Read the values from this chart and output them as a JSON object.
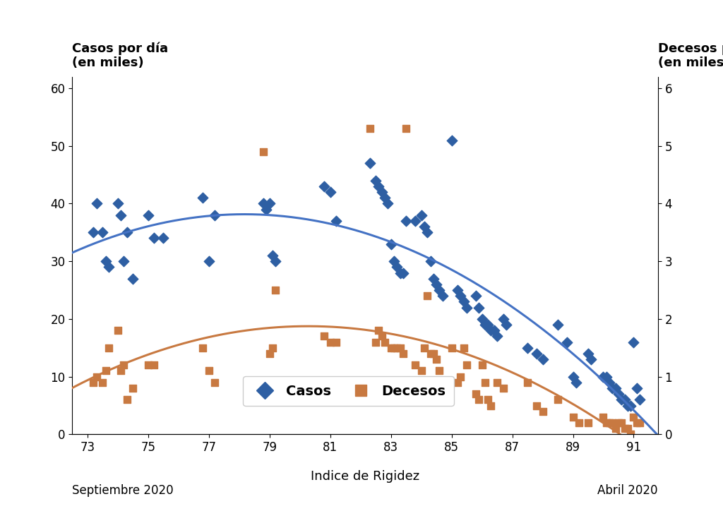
{
  "casos_scatter": [
    [
      73.2,
      35
    ],
    [
      73.3,
      40
    ],
    [
      73.5,
      35
    ],
    [
      73.6,
      30
    ],
    [
      73.7,
      29
    ],
    [
      74.0,
      40
    ],
    [
      74.1,
      38
    ],
    [
      74.2,
      30
    ],
    [
      74.3,
      35
    ],
    [
      74.5,
      27
    ],
    [
      75.0,
      38
    ],
    [
      75.2,
      34
    ],
    [
      75.5,
      34
    ],
    [
      76.8,
      41
    ],
    [
      77.0,
      30
    ],
    [
      77.2,
      38
    ],
    [
      78.8,
      40
    ],
    [
      78.9,
      39
    ],
    [
      79.0,
      40
    ],
    [
      79.1,
      31
    ],
    [
      79.2,
      30
    ],
    [
      80.8,
      43
    ],
    [
      81.0,
      42
    ],
    [
      81.2,
      37
    ],
    [
      82.3,
      47
    ],
    [
      82.5,
      44
    ],
    [
      82.6,
      43
    ],
    [
      82.7,
      42
    ],
    [
      82.8,
      41
    ],
    [
      82.9,
      40
    ],
    [
      83.0,
      33
    ],
    [
      83.1,
      30
    ],
    [
      83.2,
      29
    ],
    [
      83.3,
      28
    ],
    [
      83.4,
      28
    ],
    [
      83.5,
      37
    ],
    [
      83.8,
      37
    ],
    [
      84.0,
      38
    ],
    [
      84.1,
      36
    ],
    [
      84.2,
      35
    ],
    [
      84.3,
      30
    ],
    [
      84.4,
      27
    ],
    [
      84.5,
      26
    ],
    [
      84.6,
      25
    ],
    [
      84.7,
      24
    ],
    [
      85.0,
      51
    ],
    [
      85.2,
      25
    ],
    [
      85.3,
      24
    ],
    [
      85.4,
      23
    ],
    [
      85.5,
      22
    ],
    [
      85.8,
      24
    ],
    [
      85.9,
      22
    ],
    [
      86.0,
      20
    ],
    [
      86.1,
      19
    ],
    [
      86.2,
      19
    ],
    [
      86.3,
      18
    ],
    [
      86.4,
      18
    ],
    [
      86.5,
      17
    ],
    [
      86.7,
      20
    ],
    [
      86.8,
      19
    ],
    [
      87.5,
      15
    ],
    [
      87.8,
      14
    ],
    [
      88.0,
      13
    ],
    [
      88.5,
      19
    ],
    [
      88.8,
      16
    ],
    [
      89.0,
      10
    ],
    [
      89.1,
      9
    ],
    [
      89.5,
      14
    ],
    [
      89.6,
      13
    ],
    [
      90.0,
      10
    ],
    [
      90.1,
      10
    ],
    [
      90.2,
      9
    ],
    [
      90.3,
      8
    ],
    [
      90.4,
      8
    ],
    [
      90.5,
      7
    ],
    [
      90.6,
      6
    ],
    [
      90.7,
      6
    ],
    [
      90.8,
      5
    ],
    [
      90.9,
      5
    ],
    [
      91.0,
      16
    ],
    [
      91.1,
      8
    ],
    [
      91.2,
      6
    ]
  ],
  "decesos_scatter": [
    [
      73.2,
      9
    ],
    [
      73.3,
      10
    ],
    [
      73.5,
      9
    ],
    [
      73.6,
      11
    ],
    [
      73.7,
      15
    ],
    [
      74.0,
      18
    ],
    [
      74.1,
      11
    ],
    [
      74.2,
      12
    ],
    [
      74.3,
      6
    ],
    [
      74.5,
      8
    ],
    [
      75.0,
      12
    ],
    [
      75.2,
      12
    ],
    [
      76.8,
      15
    ],
    [
      77.0,
      11
    ],
    [
      77.2,
      9
    ],
    [
      78.8,
      49
    ],
    [
      79.0,
      14
    ],
    [
      79.1,
      15
    ],
    [
      79.2,
      25
    ],
    [
      80.8,
      17
    ],
    [
      81.0,
      16
    ],
    [
      81.2,
      16
    ],
    [
      82.3,
      53
    ],
    [
      82.5,
      16
    ],
    [
      82.6,
      18
    ],
    [
      82.7,
      17
    ],
    [
      82.8,
      16
    ],
    [
      83.0,
      15
    ],
    [
      83.1,
      15
    ],
    [
      83.2,
      15
    ],
    [
      83.3,
      15
    ],
    [
      83.4,
      14
    ],
    [
      83.5,
      53
    ],
    [
      83.8,
      12
    ],
    [
      84.0,
      11
    ],
    [
      84.1,
      15
    ],
    [
      84.2,
      24
    ],
    [
      84.3,
      14
    ],
    [
      84.4,
      14
    ],
    [
      84.5,
      13
    ],
    [
      84.6,
      11
    ],
    [
      85.0,
      15
    ],
    [
      85.2,
      9
    ],
    [
      85.3,
      10
    ],
    [
      85.4,
      15
    ],
    [
      85.5,
      12
    ],
    [
      85.8,
      7
    ],
    [
      85.9,
      6
    ],
    [
      86.0,
      12
    ],
    [
      86.1,
      9
    ],
    [
      86.2,
      6
    ],
    [
      86.3,
      5
    ],
    [
      86.5,
      9
    ],
    [
      86.7,
      8
    ],
    [
      87.5,
      9
    ],
    [
      87.8,
      5
    ],
    [
      88.0,
      4
    ],
    [
      88.5,
      6
    ],
    [
      89.0,
      3
    ],
    [
      89.2,
      2
    ],
    [
      89.5,
      2
    ],
    [
      90.0,
      3
    ],
    [
      90.1,
      2
    ],
    [
      90.2,
      2
    ],
    [
      90.3,
      2
    ],
    [
      90.4,
      1
    ],
    [
      90.5,
      2
    ],
    [
      90.6,
      2
    ],
    [
      90.7,
      1
    ],
    [
      90.8,
      1
    ],
    [
      90.9,
      0
    ],
    [
      91.0,
      3
    ],
    [
      91.1,
      2
    ],
    [
      91.2,
      2
    ]
  ],
  "casos_color": "#2E5FA3",
  "decesos_color": "#C87941",
  "curve_casos_color": "#4472C4",
  "curve_decesos_color": "#C87941",
  "casos_label": "Casos",
  "decesos_label": "Decesos",
  "xlabel": "Indice de Rigidez",
  "ylabel_left_line1": "Casos por día",
  "ylabel_left_line2": "(en miles)",
  "ylabel_right_line1": "Decesos por día",
  "ylabel_right_line2": "(en miles)",
  "x_label_left": "Septiembre 2020",
  "x_label_right": "Abril 2020",
  "xlim": [
    72.5,
    91.8
  ],
  "ylim_left": [
    0,
    62
  ],
  "ylim_right": [
    0,
    6.2
  ],
  "xticks": [
    73,
    75,
    77,
    79,
    81,
    83,
    85,
    87,
    89,
    91
  ],
  "yticks_left": [
    0,
    10,
    20,
    30,
    40,
    50,
    60
  ],
  "yticks_right": [
    0,
    1,
    2,
    3,
    4,
    5,
    6
  ],
  "background_color": "#FFFFFF"
}
